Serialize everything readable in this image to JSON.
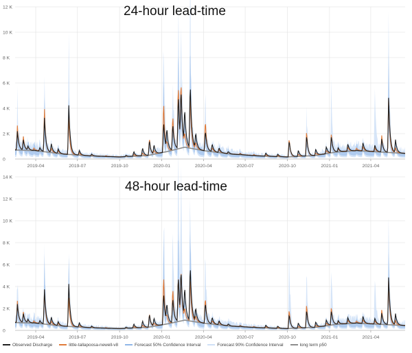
{
  "colors": {
    "observed": "#1f1f1f",
    "forecast": "#e07b39",
    "ci50": "#8fb6e8",
    "ci90": "#cfe0f7",
    "p50": "#8c8c8c",
    "grid": "#e6e6e6",
    "tick": "#666666"
  },
  "legend": [
    {
      "key": "observed",
      "label": "Observed Discharge"
    },
    {
      "key": "forecast",
      "label": "little-tallapoosa-newell-v8"
    },
    {
      "key": "ci50",
      "label": "Forecast 50% Confidence Interval"
    },
    {
      "key": "ci90",
      "label": "Forecast 90% Confidence Interval"
    },
    {
      "key": "p50",
      "label": "long term p50"
    }
  ],
  "chart_data": [
    {
      "type": "line",
      "title": "24-hour lead-time",
      "xlabel": "",
      "ylabel": "",
      "x_range": [
        "2019-02-15",
        "2021-06-15"
      ],
      "ylim": [
        0,
        12000
      ],
      "y_ticks": [
        0,
        2000,
        4000,
        6000,
        8000,
        10000,
        12000
      ],
      "y_tick_labels": [
        "0",
        "2 K",
        "4 K",
        "6 K",
        "8 K",
        "10 K",
        "12 K"
      ],
      "x_ticks": [
        "2019-04-01",
        "2019-07-01",
        "2019-10-01",
        "2020-01-01",
        "2020-04-01",
        "2020-07-01",
        "2020-10-01",
        "2021-01-01",
        "2021-04-01"
      ],
      "x_tick_labels": [
        "2019-04",
        "2019-07",
        "2019-10",
        "2020-01",
        "2020-04",
        "2020-07",
        "2020-10",
        "2021-01",
        "2021-04"
      ],
      "grid": true,
      "legend": "bottom",
      "series": [
        {
          "name": "Observed Discharge",
          "key": "observed",
          "peaks": [
            [
              "2019-02-20",
              2200
            ],
            [
              "2019-03-05",
              1500
            ],
            [
              "2019-03-15",
              1000
            ],
            [
              "2019-03-28",
              700
            ],
            [
              "2019-04-10",
              900
            ],
            [
              "2019-04-20",
              3300
            ],
            [
              "2019-05-05",
              1200
            ],
            [
              "2019-05-20",
              800
            ],
            [
              "2019-06-12",
              4400
            ],
            [
              "2019-07-05",
              700
            ],
            [
              "2019-08-01",
              400
            ],
            [
              "2019-09-01",
              200
            ],
            [
              "2019-10-15",
              300
            ],
            [
              "2019-11-01",
              600
            ],
            [
              "2019-11-20",
              900
            ],
            [
              "2019-12-05",
              1500
            ],
            [
              "2019-12-15",
              1100
            ],
            [
              "2020-01-05",
              3000
            ],
            [
              "2020-01-12",
              2200
            ],
            [
              "2020-01-25",
              2800
            ],
            [
              "2020-02-06",
              5200
            ],
            [
              "2020-02-12",
              5000
            ],
            [
              "2020-02-20",
              3700
            ],
            [
              "2020-03-03",
              6100
            ],
            [
              "2020-03-15",
              2000
            ],
            [
              "2020-04-05",
              2300
            ],
            [
              "2020-04-20",
              1200
            ],
            [
              "2020-05-05",
              900
            ],
            [
              "2020-05-25",
              600
            ],
            [
              "2020-06-20",
              400
            ],
            [
              "2020-07-20",
              300
            ],
            [
              "2020-08-15",
              500
            ],
            [
              "2020-09-10",
              400
            ],
            [
              "2020-10-05",
              1500
            ],
            [
              "2020-10-25",
              700
            ],
            [
              "2020-11-12",
              1900
            ],
            [
              "2020-12-02",
              800
            ],
            [
              "2020-12-25",
              1000
            ],
            [
              "2021-01-05",
              1800
            ],
            [
              "2021-01-20",
              900
            ],
            [
              "2021-02-10",
              1200
            ],
            [
              "2021-03-01",
              700
            ],
            [
              "2021-03-15",
              1300
            ],
            [
              "2021-04-10",
              1100
            ],
            [
              "2021-04-25",
              1600
            ],
            [
              "2021-05-10",
              4900
            ],
            [
              "2021-05-25",
              1500
            ]
          ]
        },
        {
          "name": "little-tallapoosa-newell-v8",
          "key": "forecast",
          "peaks": [
            [
              "2019-02-20",
              2100
            ],
            [
              "2019-03-05",
              1400
            ],
            [
              "2019-04-20",
              3200
            ],
            [
              "2019-06-12",
              2300
            ],
            [
              "2019-12-05",
              1300
            ],
            [
              "2020-01-05",
              4000
            ],
            [
              "2020-01-25",
              2900
            ],
            [
              "2020-02-06",
              4900
            ],
            [
              "2020-02-12",
              4700
            ],
            [
              "2020-03-03",
              3800
            ],
            [
              "2020-04-05",
              2600
            ],
            [
              "2020-10-05",
              1300
            ],
            [
              "2020-11-12",
              1800
            ],
            [
              "2021-01-05",
              1600
            ],
            [
              "2021-04-25",
              1500
            ],
            [
              "2021-05-10",
              3600
            ]
          ]
        },
        {
          "name": "Forecast 50% Confidence Interval",
          "key": "ci50",
          "peaks": [
            [
              "2019-04-20",
              3800
            ],
            [
              "2019-06-12",
              3000
            ],
            [
              "2020-01-05",
              5200
            ],
            [
              "2020-02-06",
              6000
            ],
            [
              "2020-03-03",
              5500
            ],
            [
              "2021-05-10",
              5000
            ]
          ]
        },
        {
          "name": "Forecast 90% Confidence Interval",
          "key": "ci90",
          "peaks": [
            [
              "2019-02-20",
              3600
            ],
            [
              "2019-04-20",
              4200
            ],
            [
              "2019-06-12",
              6000
            ],
            [
              "2020-01-05",
              10000
            ],
            [
              "2020-01-25",
              5500
            ],
            [
              "2020-02-06",
              10300
            ],
            [
              "2020-02-12",
              9000
            ],
            [
              "2020-03-03",
              10800
            ],
            [
              "2020-04-05",
              4200
            ],
            [
              "2020-11-12",
              3000
            ],
            [
              "2021-01-05",
              4300
            ],
            [
              "2021-04-10",
              4200
            ],
            [
              "2021-05-10",
              7500
            ]
          ]
        },
        {
          "name": "long term p50",
          "key": "p50",
          "seasonal": [
            [
              "2019-02-15",
              650
            ],
            [
              "2019-04-01",
              600
            ],
            [
              "2019-06-01",
              350
            ],
            [
              "2019-08-01",
              220
            ],
            [
              "2019-10-01",
              150
            ],
            [
              "2019-12-01",
              250
            ],
            [
              "2020-01-15",
              550
            ],
            [
              "2020-02-20",
              850
            ],
            [
              "2020-04-01",
              600
            ],
            [
              "2020-06-01",
              350
            ],
            [
              "2020-08-01",
              220
            ],
            [
              "2020-10-01",
              150
            ],
            [
              "2020-12-01",
              250
            ],
            [
              "2021-01-15",
              500
            ],
            [
              "2021-03-01",
              600
            ],
            [
              "2021-06-15",
              400
            ]
          ]
        }
      ]
    },
    {
      "type": "line",
      "title": "48-hour lead-time",
      "xlabel": "",
      "ylabel": "",
      "x_range": [
        "2019-02-15",
        "2021-06-15"
      ],
      "ylim": [
        0,
        14000
      ],
      "y_ticks": [
        0,
        2000,
        4000,
        6000,
        8000,
        10000,
        12000,
        14000
      ],
      "y_tick_labels": [
        "0",
        "2 K",
        "4 K",
        "6 K",
        "8 K",
        "10 K",
        "12 K",
        "14 K"
      ],
      "x_ticks": [
        "2019-04-01",
        "2019-07-01",
        "2019-10-01",
        "2020-01-01",
        "2020-04-01",
        "2020-07-01",
        "2020-10-01",
        "2021-01-01",
        "2021-04-01"
      ],
      "x_tick_labels": [
        "2019-04",
        "2019-07",
        "2019-10",
        "2020-01",
        "2020-04",
        "2020-07",
        "2020-10",
        "2021-01",
        "2021-04"
      ],
      "grid": true,
      "legend": "bottom",
      "series": [
        {
          "name": "Observed Discharge",
          "key": "observed",
          "peaks": [
            [
              "2019-02-20",
              2400
            ],
            [
              "2019-03-05",
              1500
            ],
            [
              "2019-03-15",
              1000
            ],
            [
              "2019-03-28",
              700
            ],
            [
              "2019-04-10",
              900
            ],
            [
              "2019-04-20",
              3800
            ],
            [
              "2019-05-05",
              1200
            ],
            [
              "2019-05-20",
              800
            ],
            [
              "2019-06-12",
              4400
            ],
            [
              "2019-07-05",
              700
            ],
            [
              "2019-08-01",
              400
            ],
            [
              "2019-09-01",
              200
            ],
            [
              "2019-10-15",
              300
            ],
            [
              "2019-11-01",
              600
            ],
            [
              "2019-11-20",
              900
            ],
            [
              "2019-12-05",
              1500
            ],
            [
              "2019-12-15",
              1100
            ],
            [
              "2020-01-05",
              3500
            ],
            [
              "2020-01-12",
              2200
            ],
            [
              "2020-01-25",
              3000
            ],
            [
              "2020-02-06",
              5100
            ],
            [
              "2020-02-12",
              5000
            ],
            [
              "2020-02-20",
              3700
            ],
            [
              "2020-03-03",
              6100
            ],
            [
              "2020-03-15",
              2000
            ],
            [
              "2020-04-05",
              2600
            ],
            [
              "2020-04-20",
              1200
            ],
            [
              "2020-05-05",
              900
            ],
            [
              "2020-05-25",
              600
            ],
            [
              "2020-06-20",
              400
            ],
            [
              "2020-07-20",
              300
            ],
            [
              "2020-08-15",
              500
            ],
            [
              "2020-09-10",
              400
            ],
            [
              "2020-10-05",
              1500
            ],
            [
              "2020-10-25",
              700
            ],
            [
              "2020-11-12",
              1900
            ],
            [
              "2020-12-02",
              800
            ],
            [
              "2020-12-25",
              1000
            ],
            [
              "2021-01-05",
              1800
            ],
            [
              "2021-01-20",
              900
            ],
            [
              "2021-02-10",
              1200
            ],
            [
              "2021-03-01",
              700
            ],
            [
              "2021-03-15",
              1300
            ],
            [
              "2021-04-10",
              1100
            ],
            [
              "2021-04-25",
              1600
            ],
            [
              "2021-05-10",
              4900
            ],
            [
              "2021-05-25",
              1500
            ]
          ]
        },
        {
          "name": "little-tallapoosa-newell-v8",
          "key": "forecast",
          "peaks": [
            [
              "2019-02-20",
              2100
            ],
            [
              "2019-03-05",
              1300
            ],
            [
              "2019-04-20",
              2800
            ],
            [
              "2019-06-12",
              2000
            ],
            [
              "2019-12-05",
              1200
            ],
            [
              "2020-01-05",
              4400
            ],
            [
              "2020-01-25",
              3300
            ],
            [
              "2020-02-06",
              4000
            ],
            [
              "2020-02-12",
              4200
            ],
            [
              "2020-03-03",
              3600
            ],
            [
              "2020-04-05",
              2500
            ],
            [
              "2020-10-05",
              1600
            ],
            [
              "2020-11-12",
              2000
            ],
            [
              "2021-01-05",
              1700
            ],
            [
              "2021-04-25",
              1500
            ],
            [
              "2021-05-10",
              3400
            ]
          ]
        },
        {
          "name": "Forecast 50% Confidence Interval",
          "key": "ci50",
          "peaks": [
            [
              "2019-04-20",
              4500
            ],
            [
              "2019-06-12",
              3200
            ],
            [
              "2020-01-05",
              6500
            ],
            [
              "2020-02-06",
              7500
            ],
            [
              "2020-03-03",
              6500
            ],
            [
              "2021-05-10",
              5500
            ]
          ]
        },
        {
          "name": "Forecast 90% Confidence Interval",
          "key": "ci90",
          "peaks": [
            [
              "2019-02-20",
              3800
            ],
            [
              "2019-04-20",
              5000
            ],
            [
              "2019-06-12",
              5500
            ],
            [
              "2020-01-05",
              10800
            ],
            [
              "2020-01-25",
              8000
            ],
            [
              "2020-02-06",
              13000
            ],
            [
              "2020-02-12",
              12000
            ],
            [
              "2020-03-03",
              11000
            ],
            [
              "2020-04-05",
              6000
            ],
            [
              "2020-10-05",
              6800
            ],
            [
              "2020-11-12",
              4500
            ],
            [
              "2021-01-05",
              5200
            ],
            [
              "2021-04-10",
              4700
            ],
            [
              "2021-05-10",
              7000
            ]
          ]
        },
        {
          "name": "long term p50",
          "key": "p50",
          "seasonal": [
            [
              "2019-02-15",
              650
            ],
            [
              "2019-04-01",
              600
            ],
            [
              "2019-06-01",
              350
            ],
            [
              "2019-08-01",
              220
            ],
            [
              "2019-10-01",
              150
            ],
            [
              "2019-12-01",
              250
            ],
            [
              "2020-01-15",
              550
            ],
            [
              "2020-02-20",
              850
            ],
            [
              "2020-04-01",
              600
            ],
            [
              "2020-06-01",
              350
            ],
            [
              "2020-08-01",
              220
            ],
            [
              "2020-10-01",
              150
            ],
            [
              "2020-12-01",
              250
            ],
            [
              "2021-01-15",
              500
            ],
            [
              "2021-03-01",
              600
            ],
            [
              "2021-06-15",
              400
            ]
          ]
        }
      ]
    }
  ]
}
